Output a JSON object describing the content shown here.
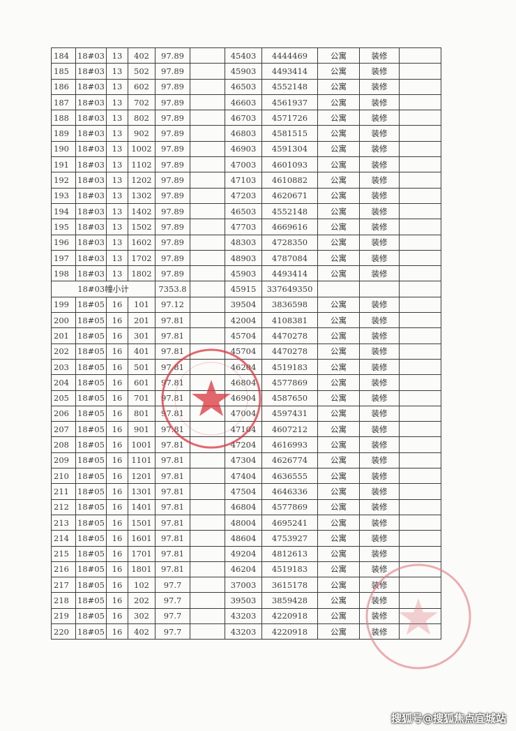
{
  "rows": [
    [
      "184",
      "18#03",
      "13",
      "402",
      "97.89",
      "",
      "45403",
      "4444469",
      "公寓",
      "装修",
      ""
    ],
    [
      "185",
      "18#03",
      "13",
      "502",
      "97.89",
      "",
      "45903",
      "4493414",
      "公寓",
      "装修",
      ""
    ],
    [
      "186",
      "18#03",
      "13",
      "602",
      "97.89",
      "",
      "46503",
      "4552148",
      "公寓",
      "装修",
      ""
    ],
    [
      "187",
      "18#03",
      "13",
      "702",
      "97.89",
      "",
      "46603",
      "4561937",
      "公寓",
      "装修",
      ""
    ],
    [
      "188",
      "18#03",
      "13",
      "802",
      "97.89",
      "",
      "46703",
      "4571726",
      "公寓",
      "装修",
      ""
    ],
    [
      "189",
      "18#03",
      "13",
      "902",
      "97.89",
      "",
      "46803",
      "4581515",
      "公寓",
      "装修",
      ""
    ],
    [
      "190",
      "18#03",
      "13",
      "1002",
      "97.89",
      "",
      "46903",
      "4591304",
      "公寓",
      "装修",
      ""
    ],
    [
      "191",
      "18#03",
      "13",
      "1102",
      "97.89",
      "",
      "47003",
      "4601093",
      "公寓",
      "装修",
      ""
    ],
    [
      "192",
      "18#03",
      "13",
      "1202",
      "97.89",
      "",
      "47103",
      "4610882",
      "公寓",
      "装修",
      ""
    ],
    [
      "193",
      "18#03",
      "13",
      "1302",
      "97.89",
      "",
      "47203",
      "4620671",
      "公寓",
      "装修",
      ""
    ],
    [
      "194",
      "18#03",
      "13",
      "1402",
      "97.89",
      "",
      "46503",
      "4552148",
      "公寓",
      "装修",
      ""
    ],
    [
      "195",
      "18#03",
      "13",
      "1502",
      "97.89",
      "",
      "47703",
      "4669616",
      "公寓",
      "装修",
      ""
    ],
    [
      "196",
      "18#03",
      "13",
      "1602",
      "97.89",
      "",
      "48303",
      "4728350",
      "公寓",
      "装修",
      ""
    ],
    [
      "197",
      "18#03",
      "13",
      "1702",
      "97.89",
      "",
      "48903",
      "4787084",
      "公寓",
      "装修",
      ""
    ],
    [
      "198",
      "18#03",
      "13",
      "1802",
      "97.89",
      "",
      "45903",
      "4493414",
      "公寓",
      "装修",
      ""
    ],
    {
      "subtotal_label": "18#03幢小计",
      "area": "7353.8",
      "avg_price": "45915",
      "total": "337649350"
    },
    [
      "199",
      "18#05",
      "16",
      "101",
      "97.12",
      "",
      "39504",
      "3836598",
      "公寓",
      "装修",
      ""
    ],
    [
      "200",
      "18#05",
      "16",
      "201",
      "97.81",
      "",
      "42004",
      "4108381",
      "公寓",
      "装修",
      ""
    ],
    [
      "201",
      "18#05",
      "16",
      "301",
      "97.81",
      "",
      "45704",
      "4470278",
      "公寓",
      "装修",
      ""
    ],
    [
      "202",
      "18#05",
      "16",
      "401",
      "97.81",
      "",
      "45704",
      "4470278",
      "公寓",
      "装修",
      ""
    ],
    [
      "203",
      "18#05",
      "16",
      "501",
      "97.81",
      "",
      "46204",
      "4519183",
      "公寓",
      "装修",
      ""
    ],
    [
      "204",
      "18#05",
      "16",
      "601",
      "97.81",
      "",
      "46804",
      "4577869",
      "公寓",
      "装修",
      ""
    ],
    [
      "205",
      "18#05",
      "16",
      "701",
      "97.81",
      "",
      "46904",
      "4587650",
      "公寓",
      "装修",
      ""
    ],
    [
      "206",
      "18#05",
      "16",
      "801",
      "97.81",
      "",
      "47004",
      "4597431",
      "公寓",
      "装修",
      ""
    ],
    [
      "207",
      "18#05",
      "16",
      "901",
      "97.81",
      "",
      "47104",
      "4607212",
      "公寓",
      "装修",
      ""
    ],
    [
      "208",
      "18#05",
      "16",
      "1001",
      "97.81",
      "",
      "47204",
      "4616993",
      "公寓",
      "装修",
      ""
    ],
    [
      "209",
      "18#05",
      "16",
      "1101",
      "97.81",
      "",
      "47304",
      "4626774",
      "公寓",
      "装修",
      ""
    ],
    [
      "210",
      "18#05",
      "16",
      "1201",
      "97.81",
      "",
      "47404",
      "4636555",
      "公寓",
      "装修",
      ""
    ],
    [
      "211",
      "18#05",
      "16",
      "1301",
      "97.81",
      "",
      "47504",
      "4646336",
      "公寓",
      "装修",
      ""
    ],
    [
      "212",
      "18#05",
      "16",
      "1401",
      "97.81",
      "",
      "46804",
      "4577869",
      "公寓",
      "装修",
      ""
    ],
    [
      "213",
      "18#05",
      "16",
      "1501",
      "97.81",
      "",
      "48004",
      "4695241",
      "公寓",
      "装修",
      ""
    ],
    [
      "214",
      "18#05",
      "16",
      "1601",
      "97.81",
      "",
      "48604",
      "4753927",
      "公寓",
      "装修",
      ""
    ],
    [
      "215",
      "18#05",
      "16",
      "1701",
      "97.81",
      "",
      "49204",
      "4812613",
      "公寓",
      "装修",
      ""
    ],
    [
      "216",
      "18#05",
      "16",
      "1801",
      "97.81",
      "",
      "46204",
      "4519183",
      "公寓",
      "装修",
      ""
    ],
    [
      "217",
      "18#05",
      "16",
      "102",
      "97.7",
      "",
      "37003",
      "3615178",
      "公寓",
      "装修",
      ""
    ],
    [
      "218",
      "18#05",
      "16",
      "202",
      "97.7",
      "",
      "39503",
      "3859428",
      "公寓",
      "装修",
      ""
    ],
    [
      "219",
      "18#05",
      "16",
      "302",
      "97.7",
      "",
      "43203",
      "4220918",
      "公寓",
      "装修",
      ""
    ],
    [
      "220",
      "18#05",
      "16",
      "402",
      "97.7",
      "",
      "43203",
      "4220918",
      "公寓",
      "装修",
      ""
    ]
  ],
  "stamp_color": "#d9363e",
  "watermark": "搜狐号@搜狐焦点宜城站"
}
